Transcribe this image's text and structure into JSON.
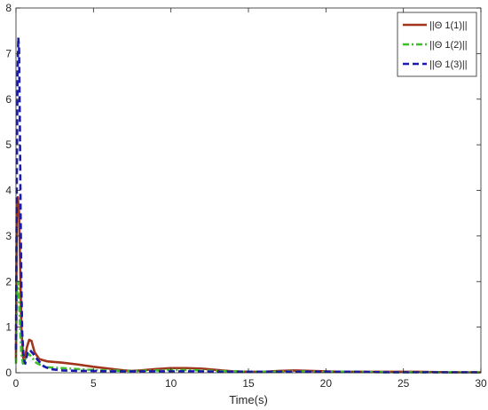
{
  "chart_data": {
    "type": "line",
    "title": "",
    "xlabel": "Time(s)",
    "ylabel": "",
    "xlim": [
      0,
      30
    ],
    "ylim": [
      0,
      8
    ],
    "xticks": [
      0,
      5,
      10,
      15,
      20,
      25,
      30
    ],
    "yticks": [
      0,
      1,
      2,
      3,
      4,
      5,
      6,
      7,
      8
    ],
    "grid": false,
    "legend_position": "top-right",
    "series": [
      {
        "name": "||Θ 1(1)||",
        "color": "#a0341c",
        "style": "solid",
        "x": [
          0,
          0.05,
          0.12,
          0.2,
          0.28,
          0.35,
          0.45,
          0.55,
          0.7,
          0.85,
          1.0,
          1.2,
          1.5,
          2.0,
          3.0,
          4.0,
          5.0,
          6.0,
          7.0,
          7.5,
          8.0,
          9.0,
          10.0,
          11.0,
          12.0,
          13.0,
          14.0,
          15.0,
          16.0,
          17.0,
          18.0,
          19.0,
          20.0,
          21.0,
          22.0,
          24.0,
          26.0,
          28.0,
          30.0
        ],
        "values": [
          0.3,
          3.4,
          3.85,
          3.5,
          2.2,
          1.0,
          0.35,
          0.25,
          0.55,
          0.72,
          0.7,
          0.45,
          0.3,
          0.25,
          0.22,
          0.18,
          0.13,
          0.09,
          0.05,
          0.04,
          0.05,
          0.08,
          0.1,
          0.1,
          0.09,
          0.06,
          0.03,
          0.02,
          0.02,
          0.04,
          0.05,
          0.04,
          0.03,
          0.02,
          0.02,
          0.02,
          0.02,
          0.01,
          0.01
        ]
      },
      {
        "name": "||Θ 1(2)||",
        "color": "#3fbe2c",
        "style": "dashdot",
        "x": [
          0,
          0.05,
          0.12,
          0.2,
          0.28,
          0.35,
          0.45,
          0.55,
          0.7,
          0.85,
          1.0,
          1.3,
          1.7,
          2.0,
          3.0,
          4.0,
          5.0,
          6.0,
          7.0,
          8.0,
          9.0,
          10.0,
          11.0,
          12.0,
          13.0,
          14.0,
          15.0,
          16.0,
          18.0,
          20.0,
          22.0,
          24.0,
          26.0,
          28.0,
          30.0
        ],
        "values": [
          0.2,
          1.6,
          2.0,
          1.6,
          0.9,
          0.4,
          0.2,
          0.25,
          0.4,
          0.4,
          0.35,
          0.22,
          0.15,
          0.12,
          0.1,
          0.08,
          0.06,
          0.05,
          0.04,
          0.04,
          0.05,
          0.06,
          0.06,
          0.05,
          0.04,
          0.03,
          0.02,
          0.02,
          0.03,
          0.02,
          0.02,
          0.01,
          0.01,
          0.01,
          0.01
        ]
      },
      {
        "name": "||Θ 1(3)||",
        "color": "#1a1aaf",
        "style": "dashed",
        "x": [
          0,
          0.05,
          0.1,
          0.15,
          0.2,
          0.25,
          0.3,
          0.35,
          0.4,
          0.5,
          0.6,
          0.75,
          0.9,
          1.1,
          1.4,
          1.8,
          2.2,
          3.0,
          4.0,
          5.0,
          6.0,
          7.0,
          8.0,
          9.0,
          10.0,
          11.0,
          12.0,
          13.0,
          14.0,
          15.0,
          16.0,
          18.0,
          20.0,
          22.0,
          24.0,
          26.0,
          28.0,
          30.0
        ],
        "values": [
          0.5,
          4.0,
          6.5,
          7.35,
          7.1,
          5.5,
          3.5,
          1.9,
          0.9,
          0.3,
          0.2,
          0.45,
          0.5,
          0.42,
          0.28,
          0.14,
          0.08,
          0.05,
          0.04,
          0.04,
          0.03,
          0.03,
          0.03,
          0.03,
          0.03,
          0.03,
          0.03,
          0.02,
          0.02,
          0.02,
          0.02,
          0.02,
          0.02,
          0.02,
          0.01,
          0.01,
          0.01,
          0.01
        ]
      }
    ]
  }
}
